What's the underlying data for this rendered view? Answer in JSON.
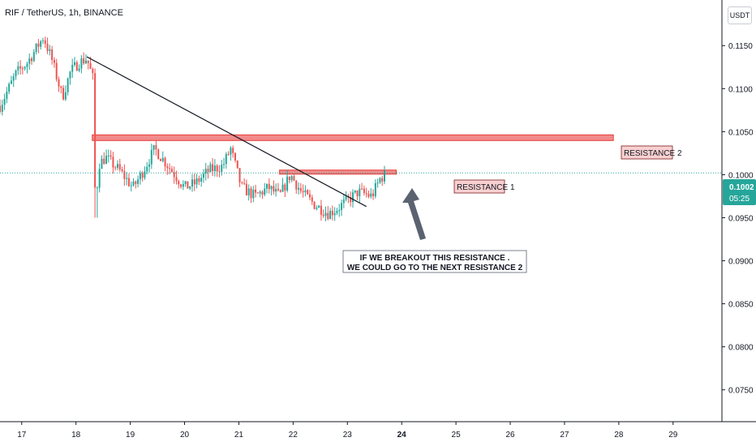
{
  "header": {
    "symbol_title": "RIF / TetherUS, 1h, BINANCE",
    "currency_button": "USDT"
  },
  "price_tag": {
    "price": "0.1002",
    "countdown": "05:25",
    "color": "#26a69a"
  },
  "annotations": {
    "resistance_1_label": "RESISTANCE 1",
    "resistance_2_label": "RESISTANCE 2",
    "note_line_1": "IF WE BREAKOUT THIS RESISTANCE .",
    "note_line_2": "WE COULD GO TO THE NEXT RESISTANCE 2"
  },
  "colors": {
    "up": "#26a69a",
    "down": "#ef5350",
    "resistance_fill": "#f28b8b",
    "resistance_border": "#e53935",
    "label_bg": "#f8d0d0",
    "arrow": "#5b6270"
  },
  "chart_data": {
    "type": "candlestick",
    "title": "RIF / TetherUS, 1h, BINANCE",
    "y_tick_labels": [
      "0.1150",
      "0.1100",
      "0.1050",
      "0.1000",
      "0.0950",
      "0.0900",
      "0.0850",
      "0.0800",
      "0.0750"
    ],
    "x_tick_labels": [
      "17",
      "18",
      "19",
      "20",
      "21",
      "22",
      "23",
      "24",
      "25",
      "26",
      "27",
      "28",
      "29"
    ],
    "ylim": [
      0.0713,
      0.1203
    ],
    "xlim_days": [
      16.6,
      29.9
    ],
    "last_price": 0.1002,
    "resistance_levels": [
      {
        "name": "RESISTANCE 1",
        "price": 0.1003,
        "from_day": 21.75,
        "to_day": 23.9
      },
      {
        "name": "RESISTANCE 2",
        "price": 0.1043,
        "from_day": 18.3,
        "to_day": 27.9
      }
    ],
    "trendline": {
      "from": {
        "day": 18.2,
        "price": 0.1137
      },
      "to": {
        "day": 23.35,
        "price": 0.0963
      }
    },
    "series": [
      {
        "name": "close",
        "points": [
          [
            16.6,
            0.108
          ],
          [
            16.9,
            0.1118
          ],
          [
            17.1,
            0.113
          ],
          [
            17.4,
            0.116
          ],
          [
            17.55,
            0.1135
          ],
          [
            17.75,
            0.109
          ],
          [
            17.9,
            0.112
          ],
          [
            18.05,
            0.113
          ],
          [
            18.2,
            0.1135
          ],
          [
            18.32,
            0.111
          ],
          [
            18.38,
            0.101
          ],
          [
            18.55,
            0.102
          ],
          [
            18.8,
            0.1005
          ],
          [
            19.05,
            0.0985
          ],
          [
            19.2,
            0.1
          ],
          [
            19.45,
            0.103
          ],
          [
            19.7,
            0.101
          ],
          [
            20.0,
            0.0985
          ],
          [
            20.2,
            0.099
          ],
          [
            20.45,
            0.1005
          ],
          [
            20.7,
            0.101
          ],
          [
            20.85,
            0.103
          ],
          [
            21.05,
            0.0985
          ],
          [
            21.3,
            0.0975
          ],
          [
            21.55,
            0.0985
          ],
          [
            21.75,
            0.0975
          ],
          [
            21.95,
            0.1
          ],
          [
            22.15,
            0.098
          ],
          [
            22.4,
            0.0965
          ],
          [
            22.65,
            0.0955
          ],
          [
            22.8,
            0.096
          ],
          [
            23.0,
            0.097
          ],
          [
            23.2,
            0.098
          ],
          [
            23.45,
            0.0975
          ],
          [
            23.6,
            0.0995
          ],
          [
            23.72,
            0.1002
          ]
        ]
      }
    ]
  }
}
